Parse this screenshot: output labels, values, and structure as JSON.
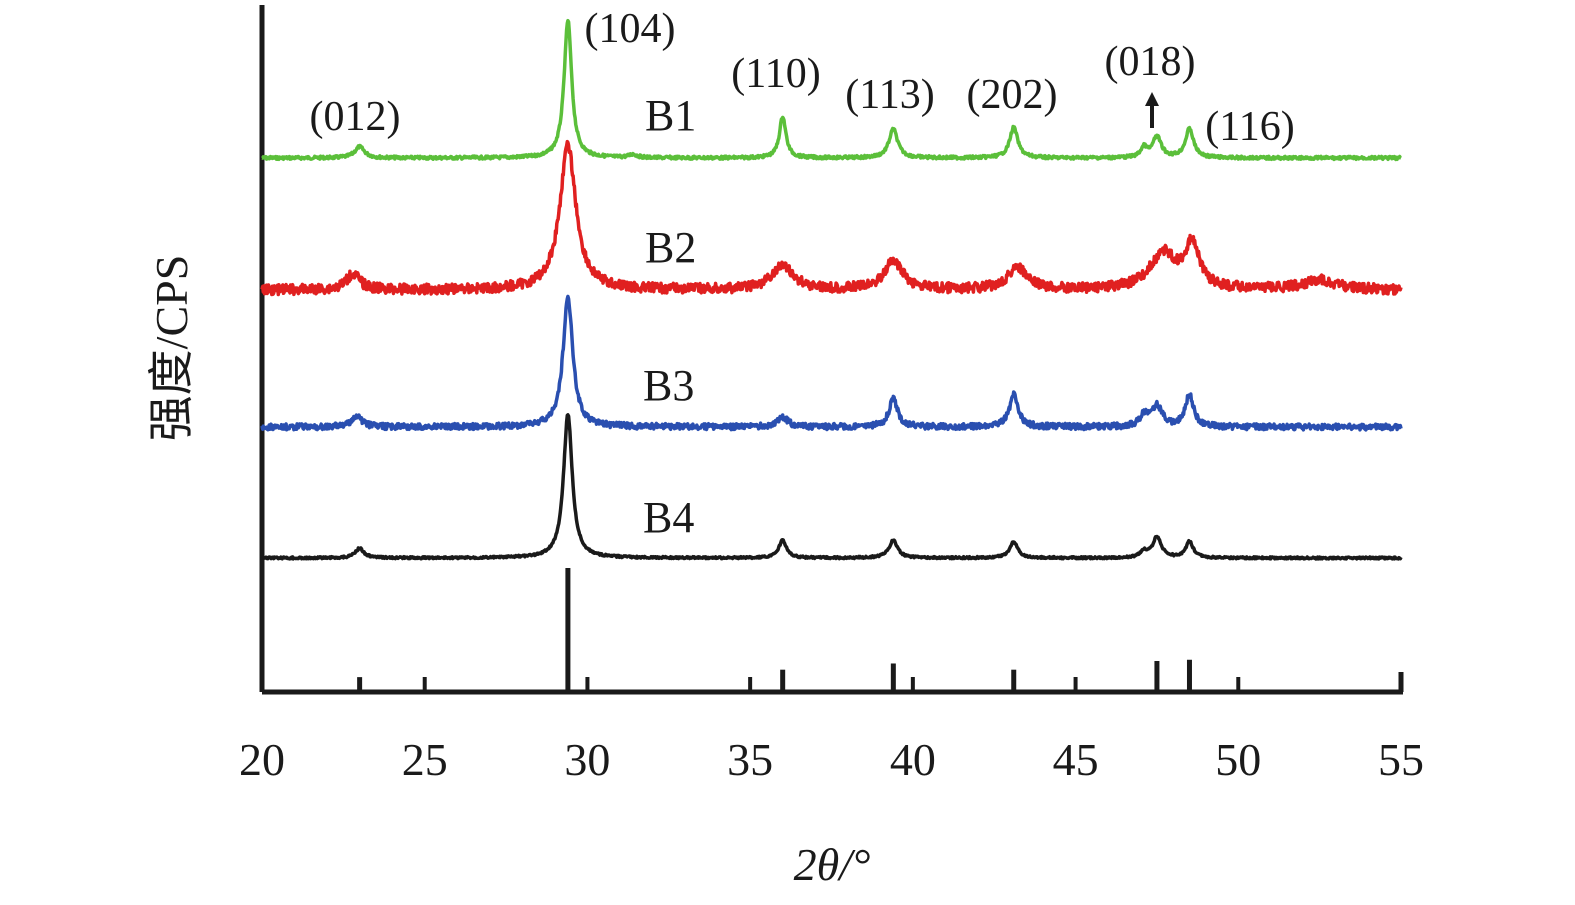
{
  "chart_data": {
    "type": "line",
    "xlabel": "2θ/°",
    "ylabel": "强度/CPS",
    "xlim": [
      20,
      55
    ],
    "xticks": [
      20,
      25,
      30,
      35,
      40,
      45,
      50,
      55
    ],
    "grid": false,
    "series": [
      {
        "name": "B1",
        "color": "#5bbf3a",
        "peaks": [
          {
            "x": 23.0,
            "h": 0.14,
            "w": 0.18
          },
          {
            "x": 29.4,
            "h": 1.72,
            "w": 0.14
          },
          {
            "x": 31.4,
            "h": 0.04,
            "w": 0.15
          },
          {
            "x": 36.0,
            "h": 0.52,
            "w": 0.12
          },
          {
            "x": 39.4,
            "h": 0.36,
            "w": 0.16
          },
          {
            "x": 43.1,
            "h": 0.38,
            "w": 0.15
          },
          {
            "x": 47.1,
            "h": 0.12,
            "w": 0.12
          },
          {
            "x": 47.5,
            "h": 0.26,
            "w": 0.16
          },
          {
            "x": 48.5,
            "h": 0.36,
            "w": 0.15
          }
        ]
      },
      {
        "name": "B2",
        "color": "#e02020",
        "peaks": [
          {
            "x": 22.8,
            "h": 0.2,
            "w": 0.25
          },
          {
            "x": 29.4,
            "h": 1.8,
            "w": 0.3
          },
          {
            "x": 36.0,
            "h": 0.3,
            "w": 0.4
          },
          {
            "x": 39.4,
            "h": 0.35,
            "w": 0.35
          },
          {
            "x": 43.2,
            "h": 0.28,
            "w": 0.35
          },
          {
            "x": 47.7,
            "h": 0.45,
            "w": 0.5
          },
          {
            "x": 48.6,
            "h": 0.55,
            "w": 0.25
          },
          {
            "x": 52.5,
            "h": 0.12,
            "w": 0.6
          }
        ]
      },
      {
        "name": "B3",
        "color": "#2a4fb0",
        "peaks": [
          {
            "x": 22.9,
            "h": 0.14,
            "w": 0.18
          },
          {
            "x": 29.4,
            "h": 1.62,
            "w": 0.18
          },
          {
            "x": 36.0,
            "h": 0.12,
            "w": 0.2
          },
          {
            "x": 39.4,
            "h": 0.35,
            "w": 0.16
          },
          {
            "x": 43.1,
            "h": 0.4,
            "w": 0.16
          },
          {
            "x": 47.1,
            "h": 0.14,
            "w": 0.14
          },
          {
            "x": 47.5,
            "h": 0.26,
            "w": 0.2
          },
          {
            "x": 48.5,
            "h": 0.4,
            "w": 0.15
          }
        ]
      },
      {
        "name": "B4",
        "color": "#1a1a1a",
        "peaks": [
          {
            "x": 23.0,
            "h": 0.12,
            "w": 0.16
          },
          {
            "x": 29.4,
            "h": 1.8,
            "w": 0.16
          },
          {
            "x": 36.0,
            "h": 0.22,
            "w": 0.14
          },
          {
            "x": 39.4,
            "h": 0.22,
            "w": 0.16
          },
          {
            "x": 43.1,
            "h": 0.2,
            "w": 0.15
          },
          {
            "x": 47.1,
            "h": 0.08,
            "w": 0.12
          },
          {
            "x": 47.5,
            "h": 0.26,
            "w": 0.16
          },
          {
            "x": 48.5,
            "h": 0.2,
            "w": 0.14
          }
        ]
      }
    ],
    "reference_lines": [
      {
        "x": 23.0,
        "h": 0.12
      },
      {
        "x": 29.4,
        "h": 1.0
      },
      {
        "x": 36.0,
        "h": 0.18
      },
      {
        "x": 39.4,
        "h": 0.23
      },
      {
        "x": 43.1,
        "h": 0.18
      },
      {
        "x": 47.5,
        "h": 0.25
      },
      {
        "x": 48.5,
        "h": 0.26
      }
    ],
    "peak_labels": [
      {
        "text": "(012)",
        "x": 23.0
      },
      {
        "text": "(104)",
        "x": 29.4
      },
      {
        "text": "(110)",
        "x": 36.0
      },
      {
        "text": "(113)",
        "x": 39.4
      },
      {
        "text": "(202)",
        "x": 43.1
      },
      {
        "text": "(018)",
        "x": 47.5
      },
      {
        "text": "(116)",
        "x": 48.5
      }
    ]
  }
}
